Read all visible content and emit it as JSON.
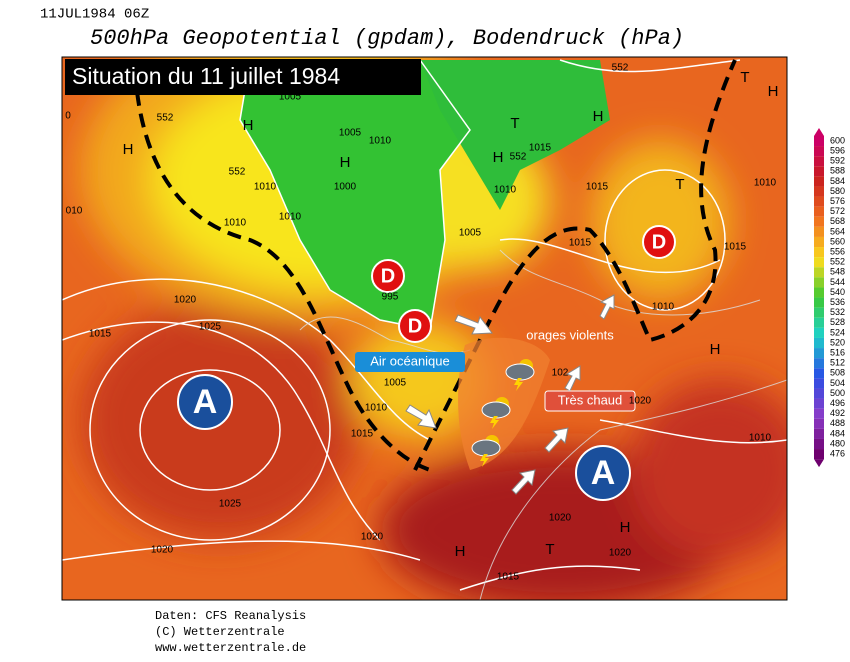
{
  "header": {
    "timestamp": "11JUL1984 06Z",
    "title": "500hPa Geopotential (gpdam), Bodendruck (hPa)"
  },
  "map": {
    "banner": "Situation du 11 juillet 1984",
    "callouts": {
      "air": "Air océanique",
      "storms": "orages violents",
      "hot": "Très chaud"
    },
    "highs": [
      "A",
      "A"
    ],
    "lows": [
      "D",
      "D",
      "D"
    ],
    "low_value": "995",
    "isobar_labels": [
      "1005",
      "1005",
      "1010",
      "1010",
      "1010",
      "1010",
      "552",
      "552",
      "552",
      "552",
      "1015",
      "1015",
      "1010",
      "1005",
      "1015",
      "1015",
      "1010",
      "1010",
      "1020",
      "1025",
      "1015",
      "1005",
      "1010",
      "1015",
      "1025",
      "1020",
      "1020",
      "1020",
      "1020",
      "1015",
      "1020",
      "1010",
      "1000",
      "102",
      "010",
      "0"
    ],
    "symbols": [
      "H",
      "H",
      "H",
      "H",
      "T",
      "H",
      "T",
      "H",
      "T",
      "H",
      "H",
      "T",
      "H"
    ]
  },
  "legend": {
    "values": [
      600,
      596,
      592,
      588,
      584,
      580,
      576,
      572,
      568,
      564,
      560,
      556,
      552,
      548,
      544,
      540,
      536,
      532,
      528,
      524,
      520,
      516,
      512,
      508,
      504,
      500,
      496,
      492,
      488,
      484,
      480,
      476
    ]
  },
  "footer": {
    "source": "Daten: CFS Reanalysis",
    "copyright": "(C) Wetterzentrale",
    "url": "www.wetterzentrale.de"
  }
}
